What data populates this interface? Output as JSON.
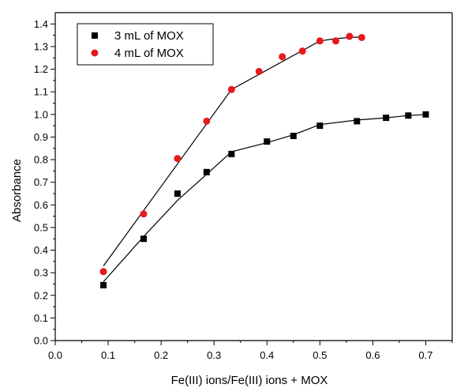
{
  "chart_data": {
    "type": "scatter",
    "title": "",
    "xlabel": "Fe(III) ions/Fe(III) ions + MOX",
    "ylabel": "Absorbance",
    "xlim": [
      0.0,
      0.75
    ],
    "ylim": [
      0.0,
      1.45
    ],
    "x_ticks": [
      "0.0",
      "0.1",
      "0.2",
      "0.3",
      "0.4",
      "0.5",
      "0.6",
      "0.7"
    ],
    "y_ticks": [
      "0.0",
      "0.1",
      "0.2",
      "0.3",
      "0.4",
      "0.5",
      "0.6",
      "0.7",
      "0.8",
      "0.9",
      "1.0",
      "1.1",
      "1.2",
      "1.3",
      "1.4"
    ],
    "grid": false,
    "legend_position": "top-left",
    "series": [
      {
        "name": "3 mL of MOX",
        "marker": "square",
        "color": "#000000",
        "x": [
          0.091,
          0.167,
          0.231,
          0.286,
          0.333,
          0.4,
          0.45,
          0.5,
          0.57,
          0.625,
          0.667,
          0.7
        ],
        "y": [
          0.245,
          0.45,
          0.65,
          0.745,
          0.825,
          0.88,
          0.905,
          0.95,
          0.97,
          0.985,
          0.995,
          1.0
        ],
        "fit_x": [
          0.091,
          0.167,
          0.231,
          0.286,
          0.333,
          0.4,
          0.45,
          0.5,
          0.57,
          0.625,
          0.667,
          0.7
        ],
        "fit_y": [
          0.26,
          0.46,
          0.62,
          0.735,
          0.835,
          0.875,
          0.91,
          0.955,
          0.975,
          0.985,
          0.995,
          1.0
        ]
      },
      {
        "name": "4 mL of MOX",
        "marker": "circle",
        "color": "#e8191d",
        "x": [
          0.091,
          0.167,
          0.231,
          0.286,
          0.333,
          0.385,
          0.429,
          0.467,
          0.5,
          0.53,
          0.556,
          0.579
        ],
        "y": [
          0.305,
          0.56,
          0.805,
          0.97,
          1.11,
          1.19,
          1.255,
          1.28,
          1.325,
          1.325,
          1.345,
          1.34
        ],
        "fit_x": [
          0.091,
          0.333,
          0.5,
          0.53,
          0.556,
          0.579
        ],
        "fit_y": [
          0.33,
          1.11,
          1.325,
          1.335,
          1.34,
          1.343
        ]
      }
    ]
  }
}
